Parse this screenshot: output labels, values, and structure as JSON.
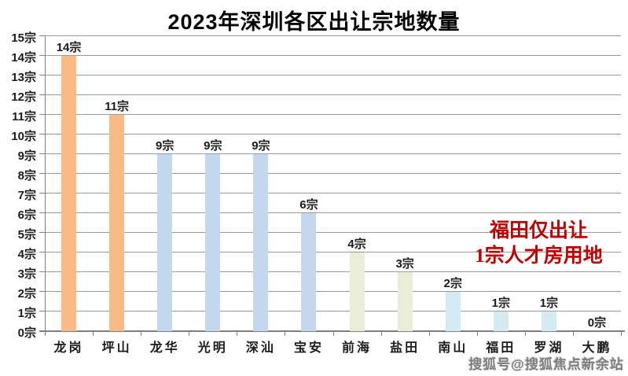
{
  "title": "2023年深圳各区出让宗地数量",
  "chart_data": {
    "type": "bar",
    "title": "2023年深圳各区出让宗地数量",
    "categories": [
      "龙岗",
      "坪山",
      "龙华",
      "光明",
      "深汕",
      "宝安",
      "前海",
      "盐田",
      "南山",
      "福田",
      "罗湖",
      "大鹏"
    ],
    "values": [
      14,
      11,
      9,
      9,
      9,
      6,
      4,
      3,
      2,
      1,
      1,
      0
    ],
    "unit": "宗",
    "value_labels": [
      "14宗",
      "11宗",
      "9宗",
      "9宗",
      "9宗",
      "6宗",
      "4宗",
      "3宗",
      "2宗",
      "1宗",
      "1宗",
      "0宗"
    ],
    "bar_colors": [
      "#f8bb86",
      "#f8bb86",
      "#c3d8ef",
      "#c3d8ef",
      "#c3d8ef",
      "#c3d8ef",
      "#eaedd8",
      "#eaedd8",
      "#d4ebf3",
      "#d4ebf3",
      "#d4ebf3",
      "#d4ebf3"
    ],
    "ylim": [
      0,
      15
    ],
    "ytick_step": 1,
    "ytick_labels": [
      "0宗",
      "1宗",
      "2宗",
      "3宗",
      "4宗",
      "5宗",
      "6宗",
      "7宗",
      "8宗",
      "9宗",
      "10宗",
      "11宗",
      "12宗",
      "13宗",
      "14宗",
      "15宗"
    ],
    "grid": true,
    "legend_position": "none",
    "xlabel": "",
    "ylabel": ""
  },
  "annotation": {
    "lines": [
      "福田仅出让",
      "1宗人才房用地"
    ],
    "color": "#c00000"
  },
  "watermark": "搜狐号@搜狐焦点新余站",
  "colors": {
    "background": "#ffffff",
    "gridline": "#9a9a9a",
    "axis": "#808080",
    "text": "#1a1a1a",
    "orange_bar": "#f8bb86",
    "blue_bar": "#c3d8ef",
    "green_bar": "#eaedd8",
    "cyan_bar": "#d4ebf3",
    "annotation_red": "#c00000"
  }
}
